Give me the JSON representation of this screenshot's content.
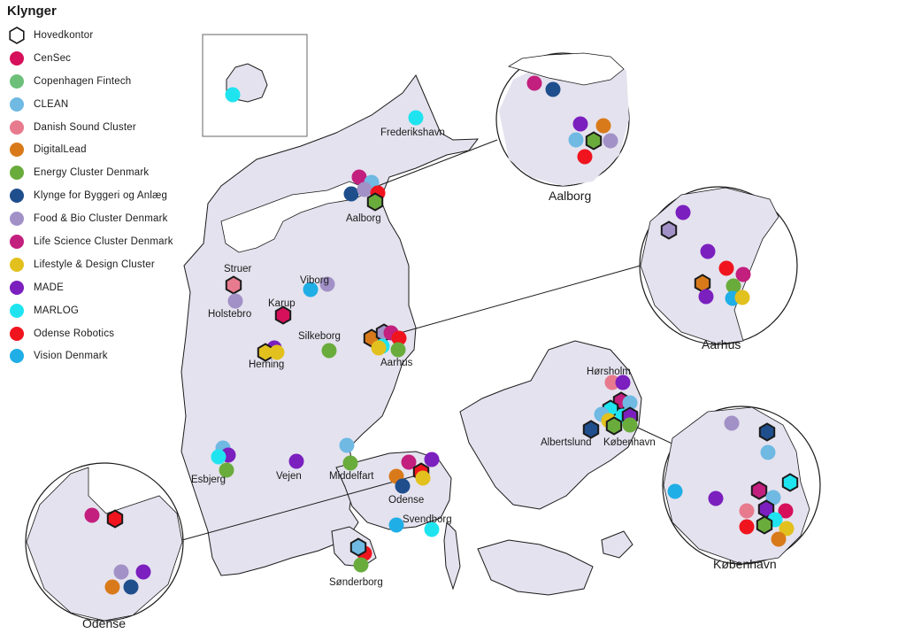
{
  "legend": {
    "title": "Klynger",
    "items": [
      {
        "label": "Hovedkontor",
        "color": "#ffffff",
        "shape": "hexagon"
      },
      {
        "label": "CenSec",
        "color": "#d6105a",
        "shape": "circle"
      },
      {
        "label": "Copenhagen Fintech",
        "color": "#6cc07a",
        "shape": "circle"
      },
      {
        "label": "CLEAN",
        "color": "#6fb9e3",
        "shape": "circle"
      },
      {
        "label": "Danish Sound Cluster",
        "color": "#e87a8e",
        "shape": "circle"
      },
      {
        "label": "DigitalLead",
        "color": "#d97a1a",
        "shape": "circle"
      },
      {
        "label": "Energy Cluster Denmark",
        "color": "#6aac3c",
        "shape": "circle"
      },
      {
        "label": "Klynge for Byggeri og Anlæg",
        "color": "#1f4e8c",
        "shape": "circle"
      },
      {
        "label": "Food & Bio Cluster Denmark",
        "color": "#a291c7",
        "shape": "circle"
      },
      {
        "label": "Life Science Cluster Denmark",
        "color": "#c21f7e",
        "shape": "circle"
      },
      {
        "label": "Lifestyle & Design Cluster",
        "color": "#e2c11e",
        "shape": "circle"
      },
      {
        "label": "MADE",
        "color": "#7b1fbf",
        "shape": "circle"
      },
      {
        "label": "MARLOG",
        "color": "#1fe4f0",
        "shape": "circle"
      },
      {
        "label": "Odense Robotics",
        "color": "#f0141e",
        "shape": "circle"
      },
      {
        "label": "Vision Denmark",
        "color": "#20aee6",
        "shape": "circle"
      }
    ]
  },
  "places": [
    {
      "name": "Frederikshavn"
    },
    {
      "name": "Aalborg"
    },
    {
      "name": "Struer"
    },
    {
      "name": "Viborg"
    },
    {
      "name": "Karup"
    },
    {
      "name": "Holstebro"
    },
    {
      "name": "Silkeborg"
    },
    {
      "name": "Herning"
    },
    {
      "name": "Aarhus"
    },
    {
      "name": "Hørsholm"
    },
    {
      "name": "Albertslund"
    },
    {
      "name": "København"
    },
    {
      "name": "Esbjerg"
    },
    {
      "name": "Vejen"
    },
    {
      "name": "Middelfart"
    },
    {
      "name": "Odense"
    },
    {
      "name": "Svendborg"
    },
    {
      "name": "Sønderborg"
    }
  ],
  "insets": {
    "aalborg": "Aalborg",
    "aarhus": "Aarhus",
    "kobenhavn": "København",
    "odense": "Odense"
  },
  "colors": {
    "land": "#e4e2ee",
    "land_stroke": "#1a1a1a"
  }
}
